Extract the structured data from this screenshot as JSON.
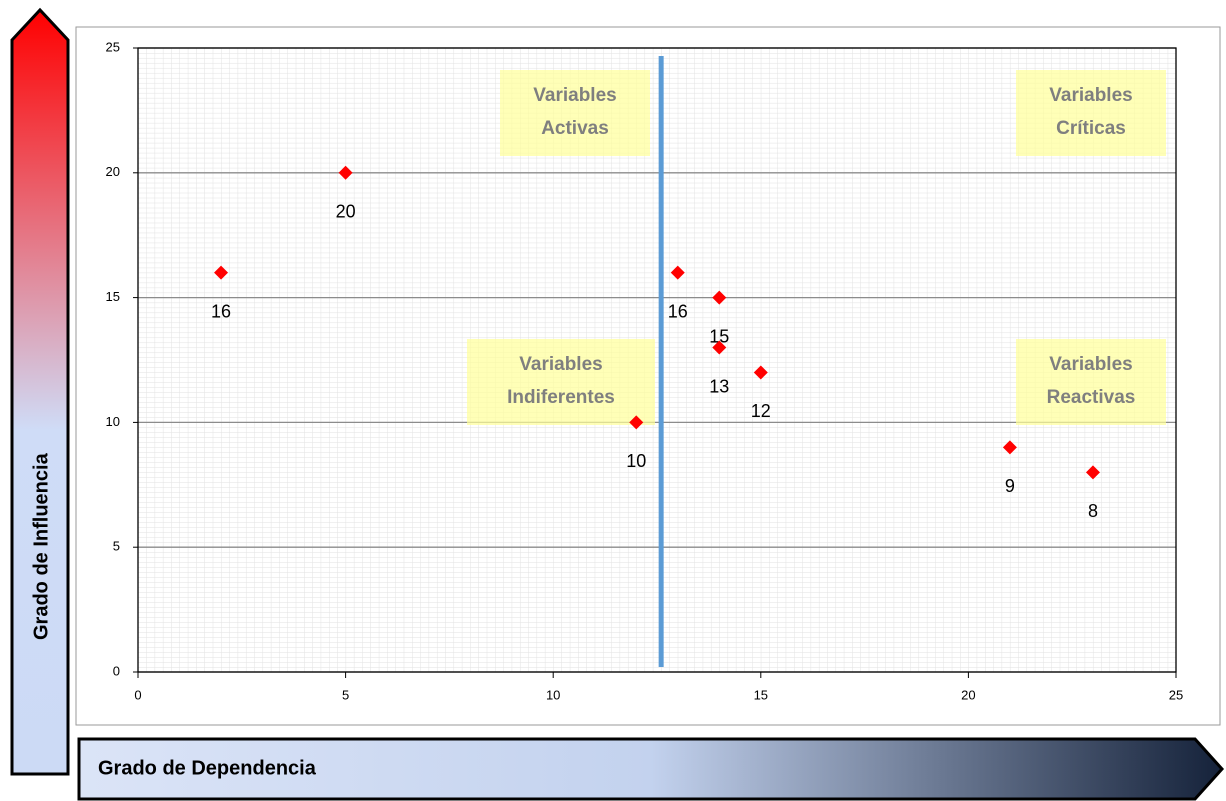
{
  "chart_data": {
    "type": "scatter",
    "x": [
      2,
      5,
      12,
      13,
      14,
      14,
      15,
      21,
      23
    ],
    "values": [
      16,
      20,
      10,
      16,
      15,
      13,
      12,
      9,
      8
    ],
    "color": "#ff0000",
    "xlim": [
      0,
      25
    ],
    "xticks": [
      0,
      5,
      10,
      15,
      20,
      25
    ],
    "ylim": [
      0,
      25
    ],
    "yticks": [
      0,
      5,
      10,
      15,
      20,
      25
    ],
    "grid": true,
    "vline": 12.6,
    "vline_color": "#5b9bd5",
    "annotations": [
      [
        "Variables",
        "Activas"
      ],
      [
        "Variables",
        "Críticas"
      ],
      [
        "Variables",
        "Indiferentes"
      ],
      [
        "Variables",
        "Reactivas"
      ]
    ],
    "y_label": "Grado de Influencia",
    "x_label": "Grado de Dependencia"
  }
}
